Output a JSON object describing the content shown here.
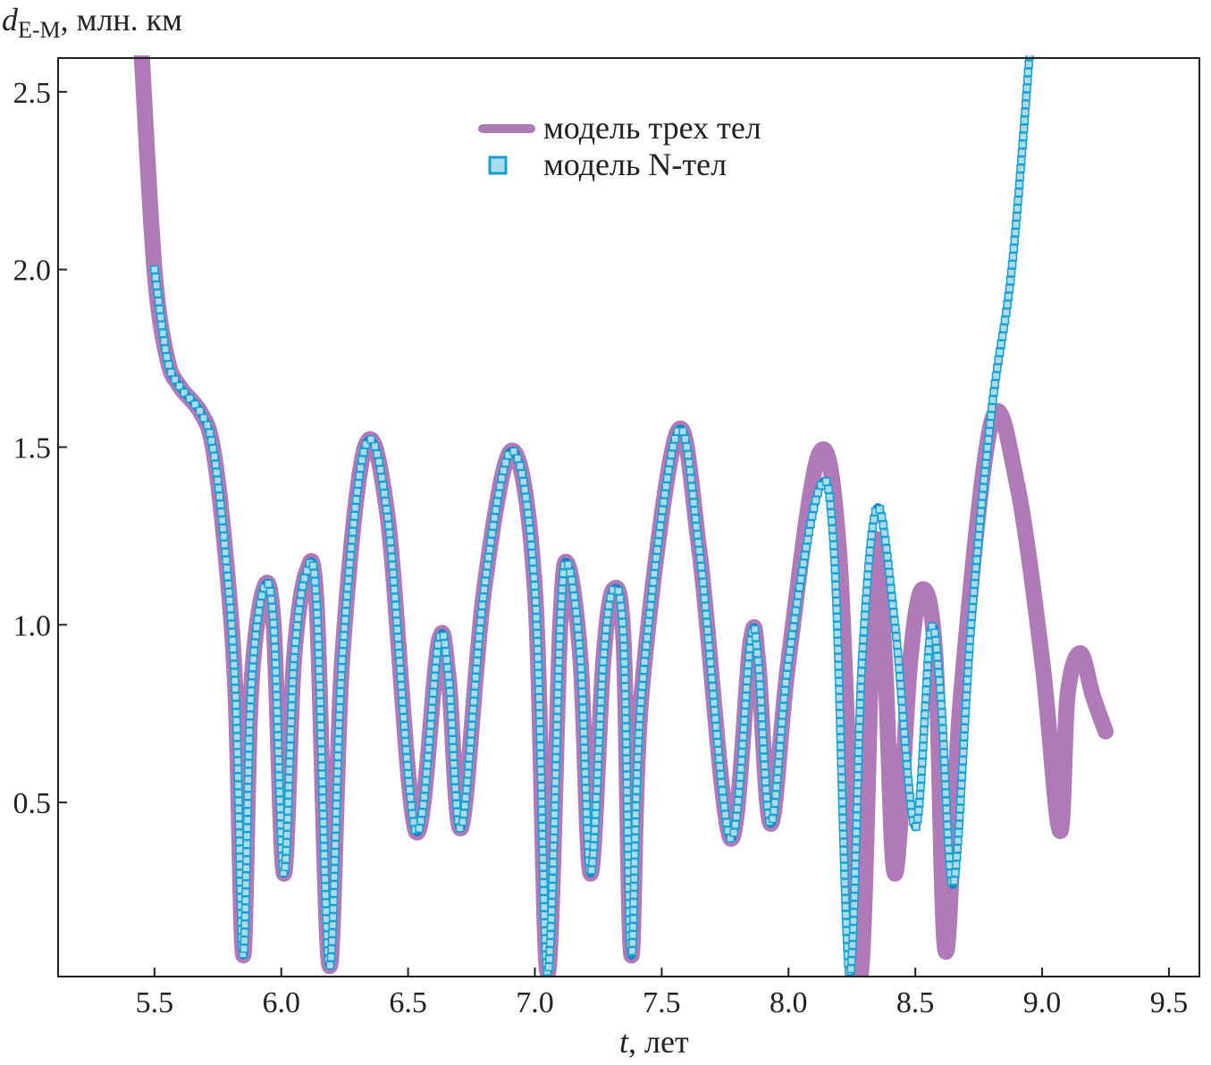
{
  "chart_data": {
    "type": "line",
    "title": "",
    "ylabel": {
      "main": "d",
      "sub": "E-M",
      "rest": ", млн. км"
    },
    "xlabel": {
      "var": "t",
      "rest": ", лет"
    },
    "xlim": [
      5.12,
      9.62
    ],
    "ylim": [
      0.01,
      2.595
    ],
    "xticks": [
      "5.5",
      "6.0",
      "6.5",
      "7.0",
      "7.5",
      "8.0",
      "8.5",
      "9.0",
      "9.5"
    ],
    "yticks": [
      "0.5",
      "1.0",
      "1.5",
      "2.0",
      "2.5"
    ],
    "legend_position": "top-center",
    "colors": {
      "three_body": "#b07ab8",
      "n_body_line": "#1a7fc4",
      "n_body_marker": "#a8dcea",
      "n_body_marker_edge": "#1aa0d0"
    },
    "series": [
      {
        "name": "модель трех тел",
        "style": "line",
        "points": [
          [
            5.45,
            2.6
          ],
          [
            5.5,
            2.0
          ],
          [
            5.55,
            1.75
          ],
          [
            5.6,
            1.67
          ],
          [
            5.68,
            1.6
          ],
          [
            5.73,
            1.5
          ],
          [
            5.78,
            1.2
          ],
          [
            5.82,
            0.8
          ],
          [
            5.85,
            0.07
          ],
          [
            5.88,
            0.8
          ],
          [
            5.93,
            1.1
          ],
          [
            5.97,
            1.0
          ],
          [
            6.01,
            0.3
          ],
          [
            6.05,
            0.9
          ],
          [
            6.1,
            1.15
          ],
          [
            6.14,
            1.05
          ],
          [
            6.19,
            0.04
          ],
          [
            6.24,
            0.9
          ],
          [
            6.33,
            1.5
          ],
          [
            6.42,
            1.3
          ],
          [
            6.53,
            0.42
          ],
          [
            6.62,
            0.95
          ],
          [
            6.66,
            0.85
          ],
          [
            6.71,
            0.43
          ],
          [
            6.8,
            1.1
          ],
          [
            6.91,
            1.49
          ],
          [
            7.0,
            1.1
          ],
          [
            7.05,
            0.02
          ],
          [
            7.1,
            1.0
          ],
          [
            7.13,
            1.17
          ],
          [
            7.18,
            0.9
          ],
          [
            7.22,
            0.3
          ],
          [
            7.27,
            0.9
          ],
          [
            7.31,
            1.1
          ],
          [
            7.35,
            0.95
          ],
          [
            7.38,
            0.07
          ],
          [
            7.42,
            0.8
          ],
          [
            7.56,
            1.54
          ],
          [
            7.65,
            1.2
          ],
          [
            7.77,
            0.4
          ],
          [
            7.85,
            0.95
          ],
          [
            7.88,
            0.9
          ],
          [
            7.93,
            0.44
          ],
          [
            8.0,
            0.9
          ],
          [
            8.12,
            1.48
          ],
          [
            8.2,
            1.2
          ],
          [
            8.28,
            0.0
          ],
          [
            8.34,
            1.2
          ],
          [
            8.38,
            0.9
          ],
          [
            8.42,
            0.3
          ],
          [
            8.48,
            0.9
          ],
          [
            8.53,
            1.1
          ],
          [
            8.58,
            0.9
          ],
          [
            8.62,
            0.08
          ],
          [
            8.68,
            0.8
          ],
          [
            8.8,
            1.57
          ],
          [
            8.9,
            1.4
          ],
          [
            9.0,
            0.9
          ],
          [
            9.07,
            0.42
          ],
          [
            9.1,
            0.8
          ],
          [
            9.15,
            0.92
          ],
          [
            9.2,
            0.8
          ],
          [
            9.25,
            0.7
          ]
        ]
      },
      {
        "name": "модель N-тел",
        "style": "markers",
        "points": [
          [
            5.5,
            2.0
          ],
          [
            5.55,
            1.75
          ],
          [
            5.6,
            1.67
          ],
          [
            5.68,
            1.6
          ],
          [
            5.73,
            1.5
          ],
          [
            5.78,
            1.2
          ],
          [
            5.82,
            0.8
          ],
          [
            5.85,
            0.07
          ],
          [
            5.88,
            0.8
          ],
          [
            5.93,
            1.1
          ],
          [
            5.97,
            1.0
          ],
          [
            6.01,
            0.3
          ],
          [
            6.05,
            0.9
          ],
          [
            6.1,
            1.15
          ],
          [
            6.14,
            1.05
          ],
          [
            6.19,
            0.04
          ],
          [
            6.24,
            0.9
          ],
          [
            6.33,
            1.5
          ],
          [
            6.42,
            1.3
          ],
          [
            6.53,
            0.42
          ],
          [
            6.62,
            0.95
          ],
          [
            6.66,
            0.85
          ],
          [
            6.71,
            0.43
          ],
          [
            6.8,
            1.1
          ],
          [
            6.91,
            1.49
          ],
          [
            7.0,
            1.1
          ],
          [
            7.05,
            0.02
          ],
          [
            7.1,
            1.0
          ],
          [
            7.13,
            1.17
          ],
          [
            7.18,
            0.9
          ],
          [
            7.22,
            0.3
          ],
          [
            7.27,
            0.9
          ],
          [
            7.31,
            1.1
          ],
          [
            7.35,
            0.95
          ],
          [
            7.38,
            0.07
          ],
          [
            7.42,
            0.8
          ],
          [
            7.56,
            1.54
          ],
          [
            7.65,
            1.2
          ],
          [
            7.77,
            0.4
          ],
          [
            7.85,
            0.95
          ],
          [
            7.88,
            0.9
          ],
          [
            7.93,
            0.44
          ],
          [
            8.0,
            0.9
          ],
          [
            8.12,
            1.38
          ],
          [
            8.18,
            1.2
          ],
          [
            8.24,
            0.02
          ],
          [
            8.29,
            0.9
          ],
          [
            8.35,
            1.33
          ],
          [
            8.42,
            1.0
          ],
          [
            8.5,
            0.43
          ],
          [
            8.56,
            0.98
          ],
          [
            8.6,
            0.8
          ],
          [
            8.65,
            0.27
          ],
          [
            8.72,
            1.0
          ],
          [
            8.8,
            1.6
          ],
          [
            8.88,
            2.0
          ],
          [
            8.95,
            2.6
          ]
        ]
      }
    ]
  }
}
